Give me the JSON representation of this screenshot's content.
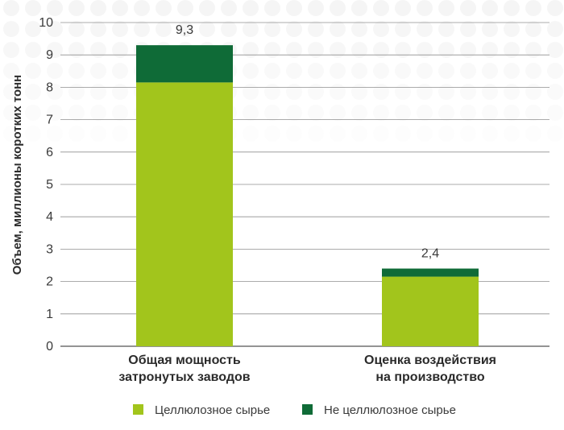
{
  "chart_data": {
    "type": "bar",
    "stacked": true,
    "categories": [
      "Общая мощность затронутых заводов",
      "Оценка воздействия на производство"
    ],
    "category_lines": [
      [
        "Общая мощность",
        "затронутых заводов"
      ],
      [
        "Оценка воздействия",
        "на производство"
      ]
    ],
    "series": [
      {
        "name": "Целлюлозное сырье",
        "values": [
          8.15,
          2.15
        ],
        "color": "#a2c51c"
      },
      {
        "name": "Не целлюлозное сырье",
        "values": [
          1.15,
          0.25
        ],
        "color": "#0f6b37"
      }
    ],
    "totals": [
      "9,3",
      "2,4"
    ],
    "ylabel": "Объем, миллионы коротких тонн",
    "xlabel": "",
    "title": "",
    "ylim": [
      0,
      10
    ],
    "yticks": [
      0,
      1,
      2,
      3,
      4,
      5,
      6,
      7,
      8,
      9,
      10
    ],
    "grid": true,
    "legend_position": "bottom",
    "background_pattern": "gray-dot-grid"
  }
}
